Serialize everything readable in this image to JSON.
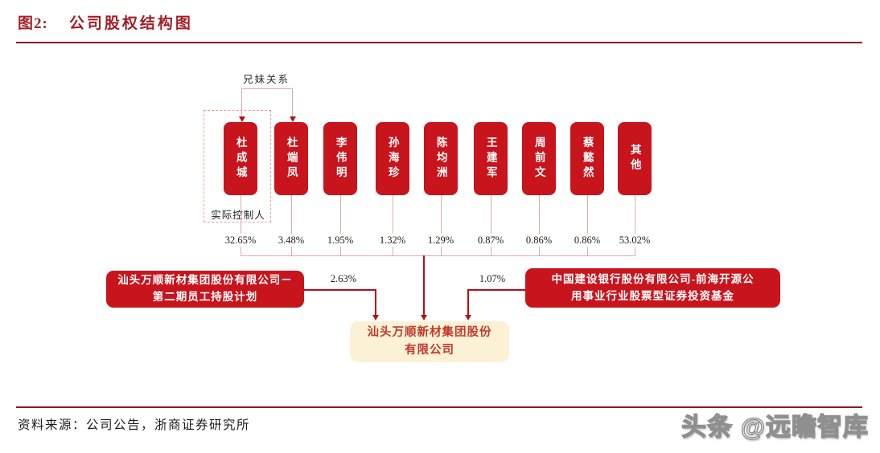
{
  "title": {
    "figure_no": "图2:",
    "text": "公司股权结构图"
  },
  "diagram": {
    "sibling_label": "兄妹关系",
    "controller_label": "实际控制人",
    "shareholders": [
      {
        "name": "杜成城",
        "pct": "32.65%"
      },
      {
        "name": "杜端凤",
        "pct": "3.48%"
      },
      {
        "name": "李伟明",
        "pct": "1.95%"
      },
      {
        "name": "孙海珍",
        "pct": "1.32%"
      },
      {
        "name": "陈均洲",
        "pct": "1.29%"
      },
      {
        "name": "王建军",
        "pct": "0.87%"
      },
      {
        "name": "周前文",
        "pct": "0.86%"
      },
      {
        "name": "蔡懿然",
        "pct": "0.86%"
      },
      {
        "name": "其他",
        "pct": "53.02%"
      }
    ],
    "left_holder": {
      "line1": "汕头万顺新材集团股份有限公司－",
      "line2": "第二期员工持股计划",
      "pct": "2.63%"
    },
    "right_holder": {
      "line1": "中国建设银行股份有限公司-前海开源公",
      "line2": "用事业行业股票型证券投资基金",
      "pct": "1.07%"
    },
    "company": {
      "line1": "汕头万顺新材集团股份",
      "line2": "有限公司"
    }
  },
  "footer": {
    "source": "资料来源：公司公告，浙商证券研究所",
    "watermark": "头条 @远瞻智库"
  },
  "colors": {
    "box_red": "#c8141c",
    "dark_red": "#8d191d",
    "title_red": "#a22025",
    "line_pink": "#e5aaaa",
    "arrow_red": "#b50f16",
    "cream": "#fcf1d5",
    "company_text": "#c0392b"
  }
}
